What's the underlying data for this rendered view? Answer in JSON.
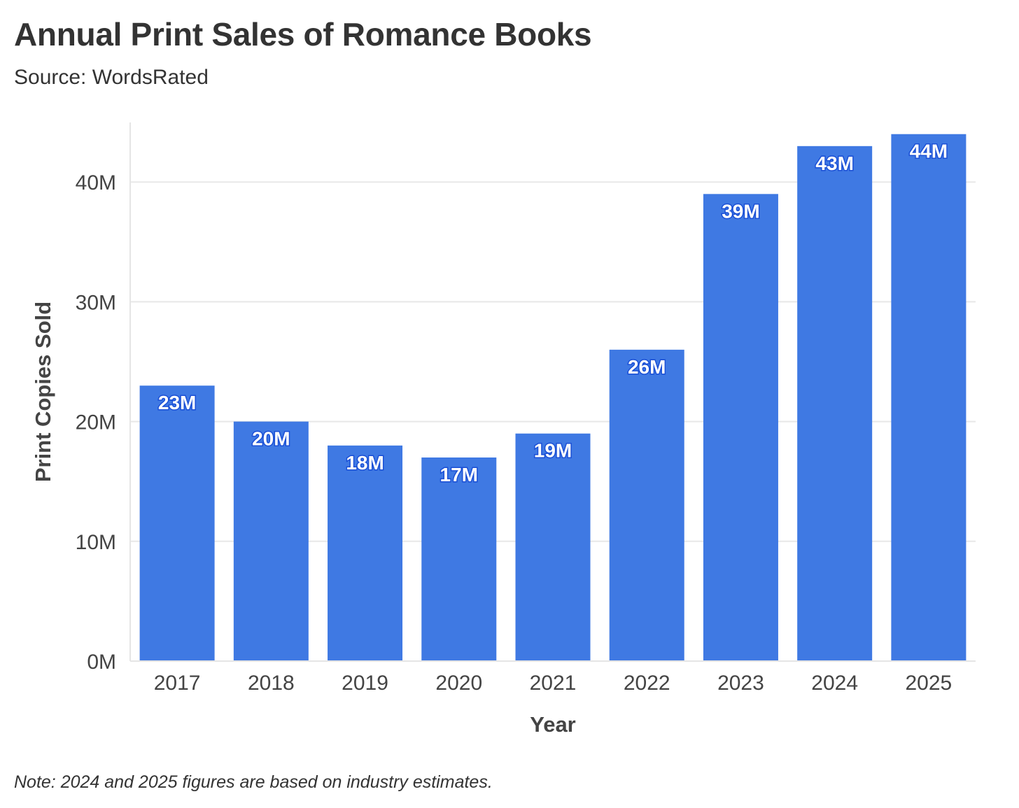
{
  "header": {
    "title": "Annual Print Sales of Romance Books",
    "subtitle": "Source: WordsRated"
  },
  "footer": {
    "note": "Note: 2024 and 2025 figures are based on industry estimates."
  },
  "colors": {
    "bar": "#3f79e3",
    "label_outline": "#1a4fd6",
    "gridline": "#e8e8e8",
    "text": "#333333"
  },
  "chart_data": {
    "type": "bar",
    "title": "Annual Print Sales of Romance Books",
    "xlabel": "Year",
    "ylabel": "Print Copies Sold",
    "categories": [
      "2017",
      "2018",
      "2019",
      "2020",
      "2021",
      "2022",
      "2023",
      "2024",
      "2025"
    ],
    "values": [
      23,
      20,
      18,
      17,
      19,
      26,
      39,
      43,
      44
    ],
    "data_labels": [
      "23M",
      "20M",
      "18M",
      "17M",
      "19M",
      "26M",
      "39M",
      "43M",
      "44M"
    ],
    "value_unit": "millions",
    "ylim": [
      0,
      45
    ],
    "yticks": [
      0,
      10,
      20,
      30,
      40
    ],
    "ytick_labels": [
      "0M",
      "10M",
      "20M",
      "30M",
      "40M"
    ],
    "grid": true,
    "legend": "none"
  }
}
